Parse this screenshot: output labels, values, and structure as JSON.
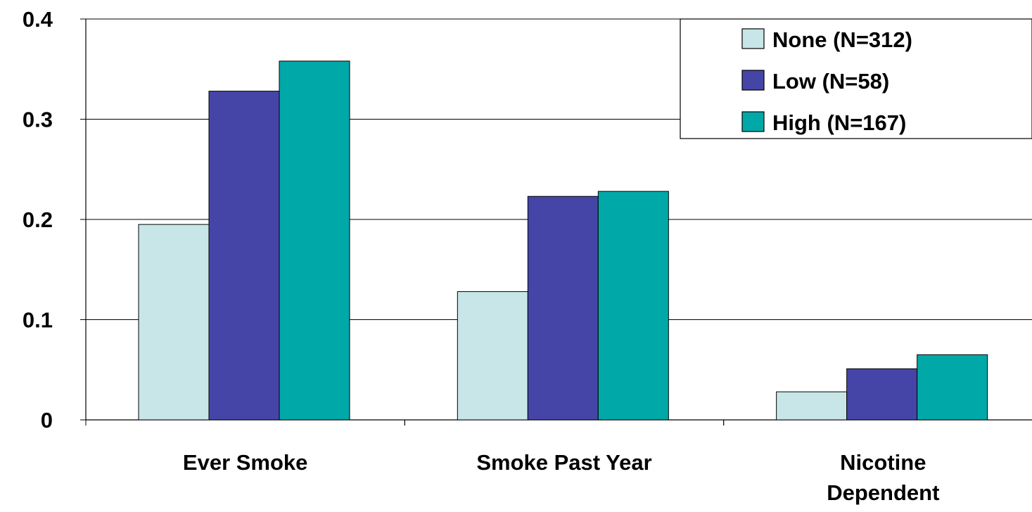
{
  "chart_data": {
    "type": "bar",
    "categories": [
      [
        "Ever Smoke"
      ],
      [
        "Smoke Past Year"
      ],
      [
        "Nicotine",
        "Dependent"
      ]
    ],
    "series": [
      {
        "name": "None (N=312)",
        "color": "#c8e6e8",
        "values": [
          0.195,
          0.128,
          0.028
        ]
      },
      {
        "name": "Low (N=58)",
        "color": "#4545a8",
        "values": [
          0.328,
          0.223,
          0.051
        ]
      },
      {
        "name": "High (N=167)",
        "color": "#00a8a8",
        "values": [
          0.358,
          0.228,
          0.065
        ]
      }
    ],
    "yticks": [
      "0",
      "0.1",
      "0.2",
      "0.3",
      "0.4"
    ],
    "ylim": [
      0,
      0.4
    ],
    "grid": true,
    "legend_position": "top-right",
    "title": "",
    "xlabel": "",
    "ylabel": ""
  }
}
